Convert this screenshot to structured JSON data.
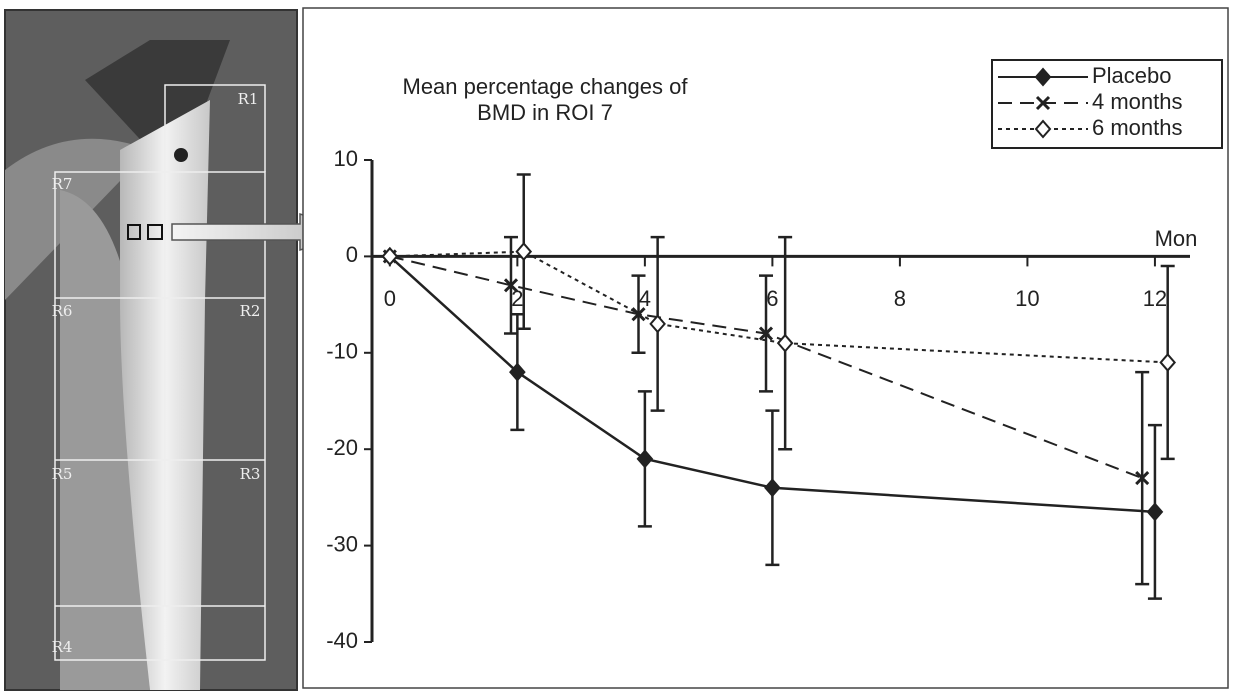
{
  "image": {
    "labels": [
      "R1",
      "R7",
      "R6",
      "R2",
      "R5",
      "R3",
      "R4"
    ]
  },
  "chart_data": {
    "type": "line",
    "title": [
      "Mean percentage changes of",
      "BMD in ROI 7"
    ],
    "x_label": "Mon",
    "xlim": [
      -0.28,
      12.55
    ],
    "xticks": [
      0,
      2,
      4,
      6,
      8,
      10,
      12
    ],
    "ylim": [
      -40,
      10
    ],
    "yticks": [
      10,
      0,
      -10,
      -20,
      -30,
      -40
    ],
    "series": [
      {
        "name": "Placebo",
        "color": "#222222",
        "style": "solid",
        "marker": "filled-diamond",
        "x": [
          0,
          2,
          4,
          6,
          12
        ],
        "values": [
          0,
          -12,
          -21,
          -24,
          -26.5
        ],
        "errors": [
          0,
          6,
          7,
          8,
          9
        ]
      },
      {
        "name": "4 months",
        "color": "#222222",
        "style": "dashed",
        "marker": "cross",
        "x": [
          0,
          1.9,
          3.9,
          5.9,
          11.8
        ],
        "values": [
          0,
          -3,
          -6,
          -8,
          -23
        ],
        "errors": [
          0,
          5,
          4,
          6,
          11
        ]
      },
      {
        "name": "6 months",
        "color": "#222222",
        "style": "dotted",
        "marker": "open-diamond",
        "x": [
          0,
          2.1,
          4.2,
          6.2,
          12.2
        ],
        "values": [
          0,
          0.5,
          -7,
          -9,
          -11
        ],
        "errors": [
          0,
          8,
          9,
          11,
          10
        ]
      }
    ],
    "legend": "top-right"
  }
}
